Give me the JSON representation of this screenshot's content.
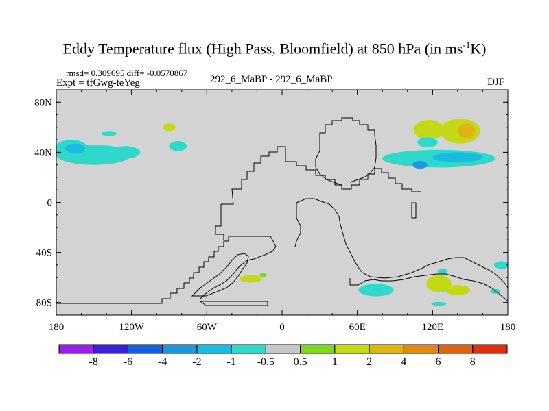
{
  "header": {
    "title_main": "Eddy Temperature flux (High Pass, Bloomfield) at 850 hPa (in ms",
    "title_sup": "-1",
    "title_end": "K)",
    "stats": "rmsd= 0.309695 diff= -0.0570867",
    "expt": "Expt = tfGwg-teYeg",
    "center": "292_6_MaBP - 292_6_MaBP",
    "season": "DJF"
  },
  "chart_data": {
    "type": "heatmap",
    "title": "Eddy Temperature flux (High Pass, Bloomfield) at 850 hPa (in ms-1K)",
    "subtitle": "292_6_MaBP - 292_6_MaBP",
    "season": "DJF",
    "x_ticks": [
      "180",
      "120W",
      "60W",
      "0",
      "60E",
      "120E",
      "180"
    ],
    "y_ticks": [
      "80N",
      "40N",
      "0",
      "40S",
      "80S"
    ],
    "xlim": [
      -180,
      180
    ],
    "ylim": [
      -90,
      90
    ],
    "colorbar_levels": [
      "-8",
      "-6",
      "-4",
      "-2",
      "-1",
      "-0.5",
      "0.5",
      "1",
      "2",
      "4",
      "6",
      "8"
    ],
    "colorbar_colors": [
      "#9B1FE8",
      "#3A1FD9",
      "#1462E0",
      "#1F96E0",
      "#19BCE0",
      "#2ED9CC",
      "#C8C8C8",
      "#7CD91A",
      "#C4D916",
      "#E0B40F",
      "#E08A0F",
      "#E0620F",
      "#E0300F"
    ],
    "background_color": "#D3D3D3",
    "rmsd": 0.309695,
    "diff": -0.0570867,
    "blobs": [
      {
        "lon": -168,
        "lat": 42,
        "rx": 14,
        "ry": 8,
        "value": -1
      },
      {
        "lon": -150,
        "lat": 38,
        "rx": 30,
        "ry": 8,
        "value": -1
      },
      {
        "lon": -165,
        "lat": 43,
        "rx": 8,
        "ry": 4,
        "value": -2
      },
      {
        "lon": -125,
        "lat": 40,
        "rx": 12,
        "ry": 5,
        "value": -1
      },
      {
        "lon": -138,
        "lat": 55,
        "rx": 6,
        "ry": 2,
        "value": -0.8
      },
      {
        "lon": -90,
        "lat": 60,
        "rx": 5,
        "ry": 3,
        "value": 1
      },
      {
        "lon": -83,
        "lat": 45,
        "rx": 7,
        "ry": 4,
        "value": -1
      },
      {
        "lon": 117,
        "lat": 58,
        "rx": 12,
        "ry": 8,
        "value": 1
      },
      {
        "lon": 142,
        "lat": 57,
        "rx": 16,
        "ry": 10,
        "value": 1
      },
      {
        "lon": 147,
        "lat": 57,
        "rx": 7,
        "ry": 6,
        "value": 2
      },
      {
        "lon": 116,
        "lat": 48,
        "rx": 8,
        "ry": 4,
        "value": -1
      },
      {
        "lon": 125,
        "lat": 35,
        "rx": 45,
        "ry": 7,
        "value": -1
      },
      {
        "lon": 140,
        "lat": 36,
        "rx": 20,
        "ry": 4,
        "value": -2
      },
      {
        "lon": 110,
        "lat": 30,
        "rx": 6,
        "ry": 3,
        "value": -4
      },
      {
        "lon": 175,
        "lat": -50,
        "rx": 6,
        "ry": 3,
        "value": -1
      },
      {
        "lon": -25,
        "lat": -61,
        "rx": 9,
        "ry": 3,
        "value": 1
      },
      {
        "lon": -15,
        "lat": -58,
        "rx": 3,
        "ry": 1.5,
        "value": 0.8
      },
      {
        "lon": 125,
        "lat": -65,
        "rx": 10,
        "ry": 7,
        "value": 1
      },
      {
        "lon": 140,
        "lat": -70,
        "rx": 10,
        "ry": 4,
        "value": 1
      },
      {
        "lon": 128,
        "lat": -55,
        "rx": 4,
        "ry": 2,
        "value": -1
      },
      {
        "lon": 75,
        "lat": -70,
        "rx": 14,
        "ry": 5,
        "value": -1
      },
      {
        "lon": 125,
        "lat": -81,
        "rx": 6,
        "ry": 1.5,
        "value": -0.8
      },
      {
        "lon": 170,
        "lat": -71,
        "rx": 4,
        "ry": 2,
        "value": -0.8
      }
    ]
  }
}
